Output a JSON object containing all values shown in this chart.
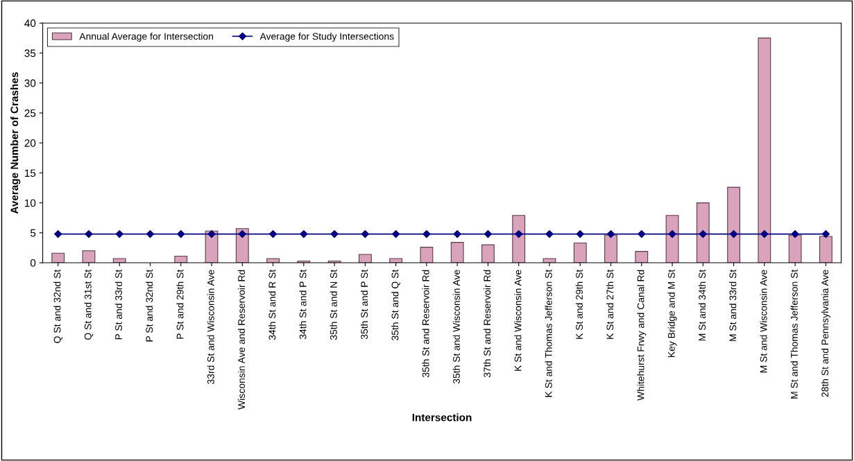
{
  "chart_data": {
    "type": "bar",
    "xlabel": "Intersection",
    "ylabel": "Average Number of Crashes",
    "categories": [
      "Q St and 32nd St",
      "Q St and 31st St",
      "P St and 33rd St",
      "P St and 32nd St",
      "P St and 29th St",
      "33rd St and Wisconsin Ave",
      "Wisconsin Ave and Reservoir Rd",
      "34th St and R St",
      "34th St and P St",
      "35th St and N St",
      "35th St and P St",
      "35th St and Q St",
      "35th St and Reservoir Rd",
      "35th St and Wisconsin Ave",
      "37th St and Reservoir Rd",
      "K St and Wisconsin Ave",
      "K St and Thomas Jefferson St",
      "K St and 29th St",
      "K St and 27th St",
      "Whitehurst Frwy and Canal Rd",
      "Key Bridge and M St",
      "M St and 34th St",
      "M St and 33rd St",
      "M St and Wisconsin Ave",
      "M St and Thomas Jefferson St",
      "28th St and Pennsylvania Ave"
    ],
    "series": [
      {
        "name": "Annual Average for Intersection",
        "color": "#d9a3bb",
        "values": [
          1.6,
          2.0,
          0.7,
          0,
          1.1,
          5.3,
          5.7,
          0.7,
          0.3,
          0.3,
          1.4,
          0.7,
          2.6,
          3.4,
          3.0,
          7.9,
          0.7,
          3.3,
          4.6,
          1.9,
          7.9,
          10.0,
          12.6,
          37.5,
          4.6,
          4.4
        ]
      },
      {
        "name": "Average for Study Intersections",
        "type": "line",
        "color": "#000080",
        "marker": "diamond",
        "values": [
          4.8,
          4.8,
          4.8,
          4.8,
          4.8,
          4.8,
          4.8,
          4.8,
          4.8,
          4.8,
          4.8,
          4.8,
          4.8,
          4.8,
          4.8,
          4.8,
          4.8,
          4.8,
          4.8,
          4.8,
          4.8,
          4.8,
          4.8,
          4.8,
          4.8,
          4.8
        ]
      }
    ],
    "ylim": [
      0,
      40
    ],
    "yticks": [
      0,
      5,
      10,
      15,
      20,
      25,
      30,
      35,
      40
    ],
    "grid": false,
    "legend": "top left"
  }
}
